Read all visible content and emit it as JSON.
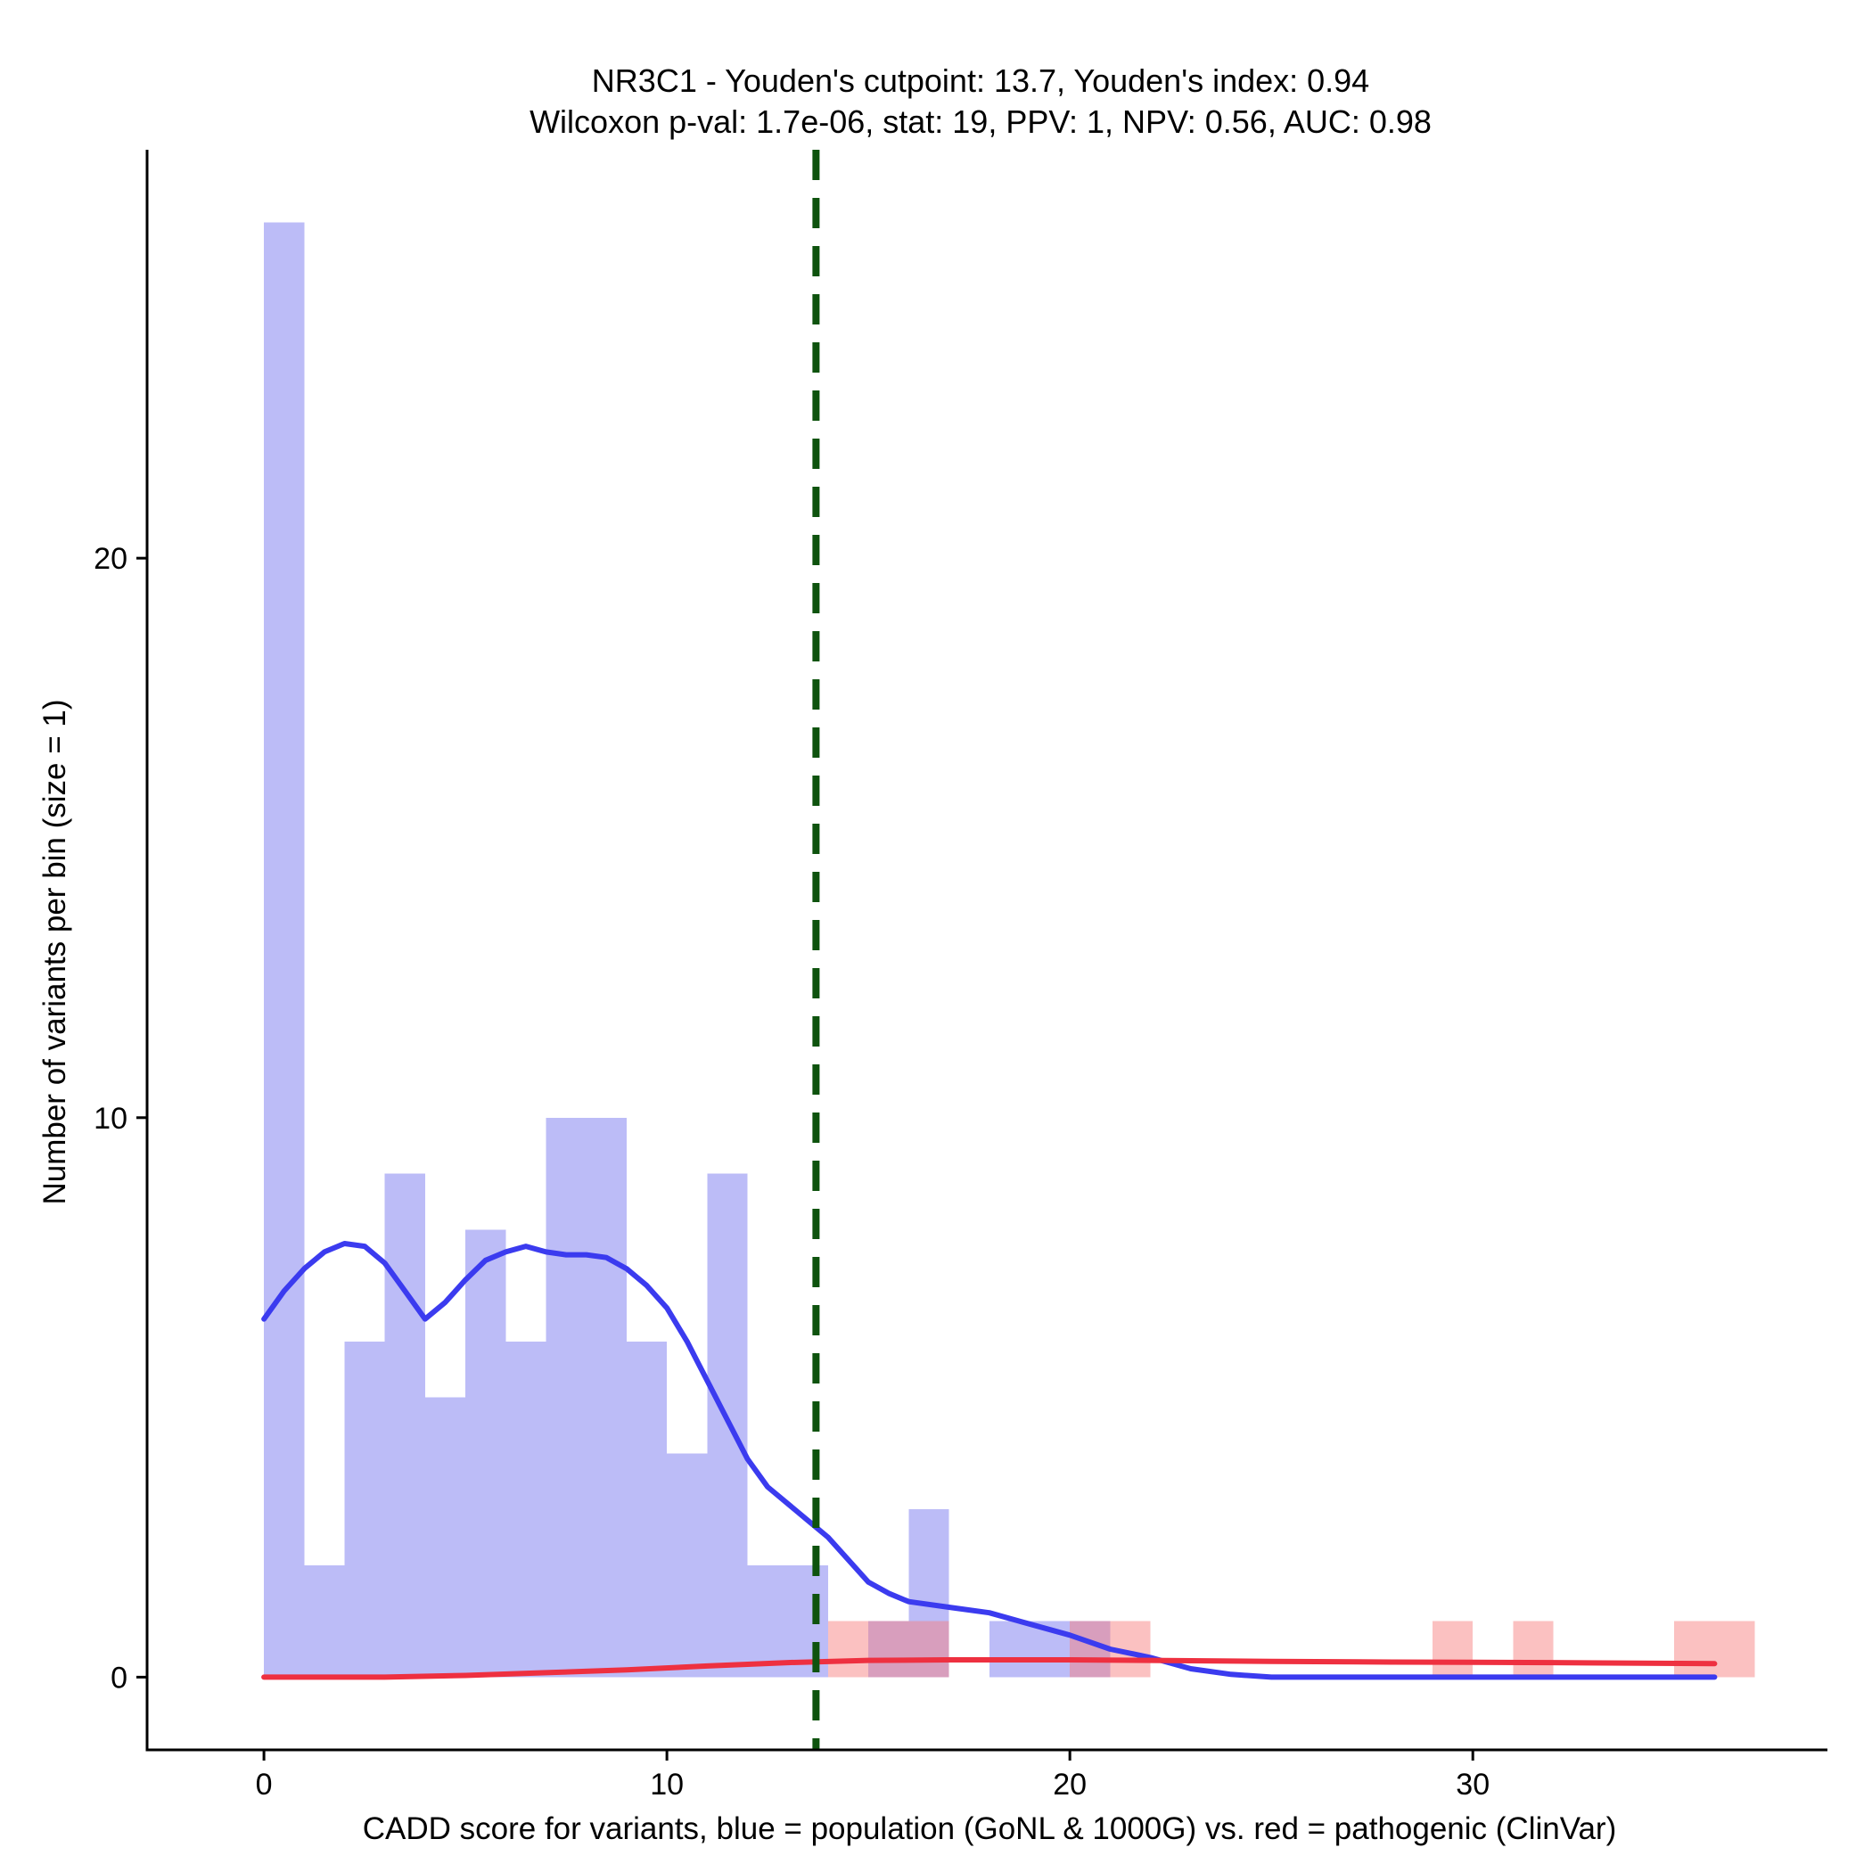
{
  "chart_data": {
    "type": "histogram",
    "title_line1": "NR3C1 - Youden's cutpoint: 13.7, Youden's index: 0.94",
    "title_line2": "Wilcoxon p-val: 1.7e-06, stat: 19, PPV: 1, NPV: 0.56, AUC: 0.98",
    "xlabel": "CADD score for variants, blue = population (GoNL & 1000G) vs. red = pathogenic (ClinVar)",
    "ylabel": "Number of variants per bin (size = 1)",
    "xlim": [
      -2.9,
      38.8
    ],
    "ylim": [
      -1.3,
      27.3
    ],
    "x_ticks": [
      0,
      10,
      20,
      30
    ],
    "y_ticks": [
      0,
      10,
      20
    ],
    "bin_size": 1,
    "cutpoint": 13.7,
    "colors": {
      "population_bar": "#bcbcf7",
      "pathogenic_bar": "#fcbebe",
      "population_line": "#3b3bef",
      "pathogenic_line": "#ee3040",
      "cutpoint_line": "#0e530e"
    },
    "series": [
      {
        "name": "population",
        "bins": [
          {
            "x": 0,
            "count": 26
          },
          {
            "x": 1,
            "count": 2
          },
          {
            "x": 2,
            "count": 6
          },
          {
            "x": 3,
            "count": 9
          },
          {
            "x": 4,
            "count": 5
          },
          {
            "x": 5,
            "count": 8
          },
          {
            "x": 6,
            "count": 6
          },
          {
            "x": 7,
            "count": 10
          },
          {
            "x": 8,
            "count": 10
          },
          {
            "x": 9,
            "count": 6
          },
          {
            "x": 10,
            "count": 4
          },
          {
            "x": 11,
            "count": 9
          },
          {
            "x": 12,
            "count": 2
          },
          {
            "x": 13,
            "count": 2
          },
          {
            "x": 15,
            "count": 1
          },
          {
            "x": 16,
            "count": 3
          },
          {
            "x": 18,
            "count": 1
          },
          {
            "x": 19,
            "count": 1
          },
          {
            "x": 20,
            "count": 1
          }
        ],
        "density_curve": [
          [
            0,
            6.4
          ],
          [
            0.5,
            6.9
          ],
          [
            1,
            7.3
          ],
          [
            1.5,
            7.6
          ],
          [
            2,
            7.75
          ],
          [
            2.5,
            7.7
          ],
          [
            3,
            7.4
          ],
          [
            3.5,
            6.9
          ],
          [
            4,
            6.4
          ],
          [
            4.5,
            6.7
          ],
          [
            5,
            7.1
          ],
          [
            5.5,
            7.45
          ],
          [
            6,
            7.6
          ],
          [
            6.5,
            7.7
          ],
          [
            7,
            7.6
          ],
          [
            7.5,
            7.55
          ],
          [
            8,
            7.55
          ],
          [
            8.5,
            7.5
          ],
          [
            9,
            7.3
          ],
          [
            9.5,
            7.0
          ],
          [
            10,
            6.6
          ],
          [
            10.5,
            6.0
          ],
          [
            11,
            5.3
          ],
          [
            11.5,
            4.6
          ],
          [
            12,
            3.9
          ],
          [
            12.5,
            3.4
          ],
          [
            13,
            3.1
          ],
          [
            13.5,
            2.8
          ],
          [
            14,
            2.5
          ],
          [
            14.5,
            2.1
          ],
          [
            15,
            1.7
          ],
          [
            15.5,
            1.5
          ],
          [
            16,
            1.35
          ],
          [
            17,
            1.25
          ],
          [
            18,
            1.15
          ],
          [
            19,
            0.95
          ],
          [
            20,
            0.75
          ],
          [
            21,
            0.5
          ],
          [
            22,
            0.35
          ],
          [
            23,
            0.15
          ],
          [
            24,
            0.05
          ],
          [
            25,
            0
          ],
          [
            30,
            0
          ],
          [
            36,
            0
          ]
        ]
      },
      {
        "name": "pathogenic",
        "bins": [
          {
            "x": 14,
            "count": 1
          },
          {
            "x": 15,
            "count": 1
          },
          {
            "x": 16,
            "count": 1
          },
          {
            "x": 20,
            "count": 1
          },
          {
            "x": 21,
            "count": 1
          },
          {
            "x": 29,
            "count": 1
          },
          {
            "x": 31,
            "count": 1
          },
          {
            "x": 35,
            "count": 1
          },
          {
            "x": 36,
            "count": 1
          }
        ],
        "density_curve": [
          [
            0,
            0
          ],
          [
            3,
            0
          ],
          [
            5,
            0.03
          ],
          [
            7,
            0.08
          ],
          [
            9,
            0.13
          ],
          [
            11,
            0.2
          ],
          [
            13,
            0.26
          ],
          [
            15,
            0.3
          ],
          [
            17,
            0.31
          ],
          [
            20,
            0.31
          ],
          [
            22,
            0.3
          ],
          [
            25,
            0.28
          ],
          [
            28,
            0.27
          ],
          [
            32,
            0.26
          ],
          [
            36,
            0.24
          ]
        ]
      }
    ]
  }
}
